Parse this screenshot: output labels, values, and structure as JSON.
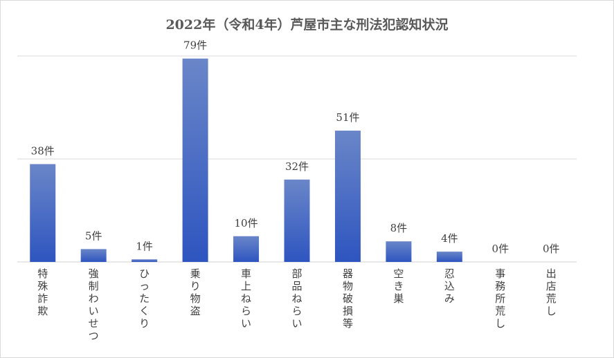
{
  "chart_data": {
    "type": "bar",
    "title": "2022年（令和4年）芦屋市主な刑法犯認知状況",
    "categories": [
      "特殊詐欺",
      "強制わいせつ",
      "ひったくり",
      "乗り物盗",
      "車上ねらい",
      "部品ねらい",
      "器物破損等",
      "空き巣",
      "忍込み",
      "事務所荒し",
      "出店荒し"
    ],
    "values": [
      38,
      5,
      1,
      79,
      10,
      32,
      51,
      8,
      4,
      0,
      0
    ],
    "value_labels": [
      "38件",
      "5件",
      "1件",
      "79件",
      "10件",
      "32件",
      "51件",
      "8件",
      "4件",
      "0件",
      "0件"
    ],
    "ylim": [
      0,
      80
    ],
    "grid": true,
    "legend": "none",
    "bar_color_top": "#6a86c8",
    "bar_color_bottom": "#2e55c0",
    "gridline_color": "#d9d9d9"
  }
}
